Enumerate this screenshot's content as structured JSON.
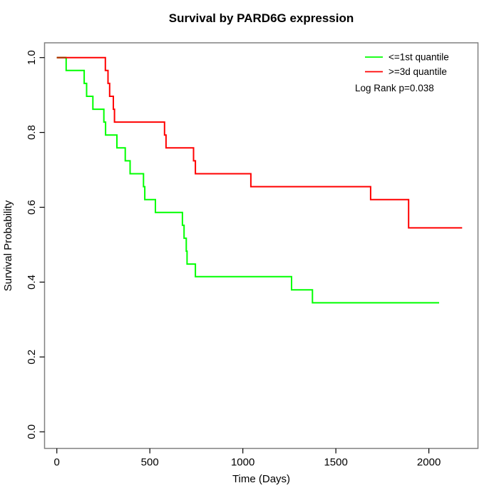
{
  "chart_data": {
    "type": "line",
    "subtype": "kaplan-meier-step",
    "title": "Survival by PARD6G expression",
    "xlabel": "Time (Days)",
    "ylabel": "Survival Probability",
    "annotation": "Log Rank p=0.038",
    "grid": false,
    "legend_position": "top-right",
    "xlim": [
      -66,
      2264
    ],
    "ylim": [
      -0.0444,
      1.0395
    ],
    "x_ticks": [
      0,
      500,
      1000,
      1500,
      2000
    ],
    "x_tick_labels": [
      "0",
      "500",
      "1000",
      "1500",
      "2000"
    ],
    "y_ticks": [
      0.0,
      0.2,
      0.4,
      0.6,
      0.8,
      1.0
    ],
    "y_tick_labels": [
      "0.0",
      "0.2",
      "0.4",
      "0.6",
      "0.8",
      "1.0"
    ],
    "series": [
      {
        "name": "<=1st quantile",
        "color": "#00FF00",
        "start": [
          0,
          1.0
        ],
        "steps": [
          [
            50,
            0.9655
          ],
          [
            147,
            0.931
          ],
          [
            160,
            0.8966
          ],
          [
            194,
            0.862
          ],
          [
            253,
            0.8276
          ],
          [
            262,
            0.7931
          ],
          [
            323,
            0.7586
          ],
          [
            368,
            0.7241
          ],
          [
            394,
            0.6897
          ],
          [
            466,
            0.6552
          ],
          [
            473,
            0.6207
          ],
          [
            530,
            0.5862
          ],
          [
            675,
            0.5517
          ],
          [
            684,
            0.5172
          ],
          [
            696,
            0.4828
          ],
          [
            700,
            0.4483
          ],
          [
            745,
            0.4145
          ],
          [
            1262,
            0.3795
          ],
          [
            1374,
            0.3448
          ]
        ],
        "end_time": 2055,
        "final_value": 0.3448
      },
      {
        "name": ">=3d quantile",
        "color": "#FF0000",
        "start": [
          0,
          1.0
        ],
        "steps": [
          [
            261,
            0.9655
          ],
          [
            275,
            0.931
          ],
          [
            284,
            0.8966
          ],
          [
            304,
            0.862
          ],
          [
            310,
            0.8276
          ],
          [
            579,
            0.7931
          ],
          [
            587,
            0.7586
          ],
          [
            735,
            0.7241
          ],
          [
            745,
            0.6897
          ],
          [
            1043,
            0.6552
          ],
          [
            1687,
            0.6207
          ],
          [
            1891,
            0.545
          ]
        ],
        "end_time": 2179,
        "final_value": 0.545
      }
    ],
    "overlap_segment": {
      "t0": 0,
      "t1": 50,
      "value": 1.0,
      "color": "#B03200"
    },
    "colors": {
      "box": "#808080",
      "ticks": "#000000",
      "text": "#000000",
      "background": "#FFFFFF"
    }
  }
}
